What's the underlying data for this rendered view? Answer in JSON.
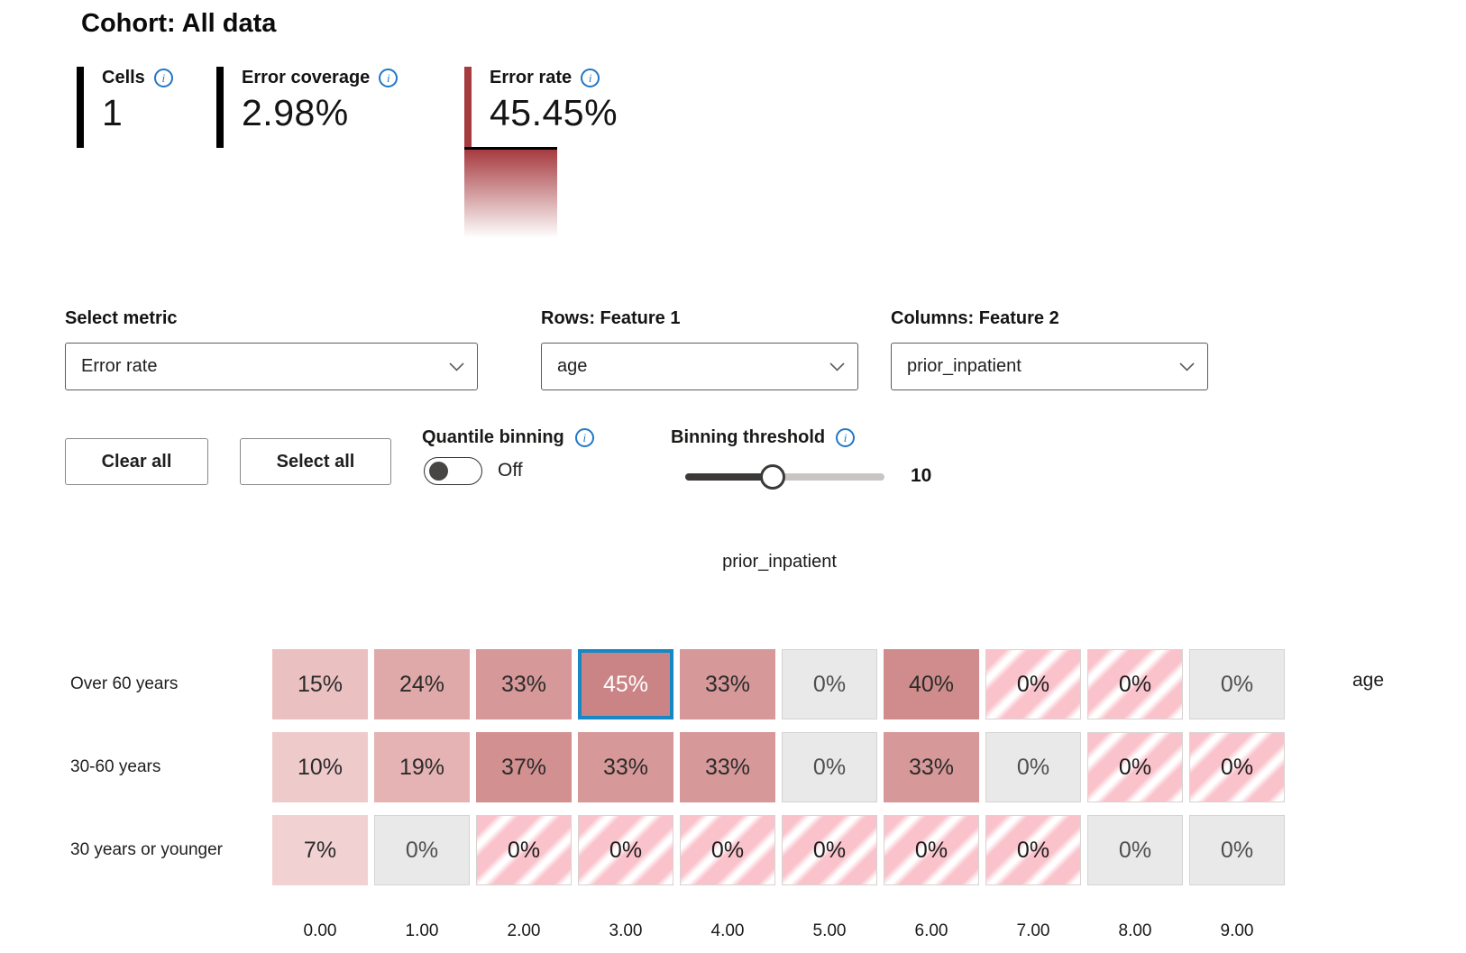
{
  "title": "Cohort: All data",
  "stats": [
    {
      "label": "Cells",
      "value": "1",
      "bar_color": "#000000"
    },
    {
      "label": "Error coverage",
      "value": "2.98%",
      "bar_color": "#000000"
    },
    {
      "label": "Error rate",
      "value": "45.45%",
      "bar_color": "#a63b40"
    }
  ],
  "legend": {
    "gradient_top": "#a63b40",
    "gradient_bottom": "#ffffff"
  },
  "controls": {
    "metric": {
      "label": "Select metric",
      "value": "Error rate"
    },
    "rows_feature": {
      "label": "Rows: Feature 1",
      "value": "age"
    },
    "cols_feature": {
      "label": "Columns: Feature 2",
      "value": "prior_inpatient"
    },
    "clear_all_label": "Clear all",
    "select_all_label": "Select all",
    "quantile": {
      "label": "Quantile binning",
      "state": "Off"
    },
    "threshold": {
      "label": "Binning threshold",
      "value": "10",
      "percent": 44
    }
  },
  "colors": {
    "selection_border": "#1788c4",
    "info_icon": "#2076c6",
    "stripe_pink": "#fac2cb",
    "gray_cell": "#e9e9e9"
  },
  "chart_data": {
    "type": "heatmap",
    "title": "prior_inpatient",
    "metric": "Error rate",
    "col_axis_label": "prior_inpatient",
    "row_axis_label": "age",
    "rows": [
      "Over 60 years",
      "30-60 years",
      "30 years or younger"
    ],
    "columns": [
      "0.00",
      "1.00",
      "2.00",
      "3.00",
      "4.00",
      "5.00",
      "6.00",
      "7.00",
      "8.00",
      "9.00"
    ],
    "values": [
      [
        15,
        24,
        33,
        45,
        33,
        0,
        40,
        0,
        0,
        0
      ],
      [
        10,
        19,
        37,
        33,
        33,
        0,
        33,
        0,
        0,
        0
      ],
      [
        7,
        0,
        0,
        0,
        0,
        0,
        0,
        0,
        0,
        0
      ]
    ],
    "selected_cell": {
      "row": 0,
      "col": 3
    },
    "cells": [
      [
        {
          "label": "15%",
          "style": "solid",
          "color": "#ebc0c1"
        },
        {
          "label": "24%",
          "style": "solid",
          "color": "#e0a9a9"
        },
        {
          "label": "33%",
          "style": "solid",
          "color": "#d79899"
        },
        {
          "label": "45%",
          "style": "solid",
          "color": "#cb8485",
          "selected": true
        },
        {
          "label": "33%",
          "style": "solid",
          "color": "#d79899"
        },
        {
          "label": "0%",
          "style": "gray"
        },
        {
          "label": "40%",
          "style": "solid",
          "color": "#d08c8c"
        },
        {
          "label": "0%",
          "style": "stripe"
        },
        {
          "label": "0%",
          "style": "stripe"
        },
        {
          "label": "0%",
          "style": "gray"
        }
      ],
      [
        {
          "label": "10%",
          "style": "solid",
          "color": "#efcacb"
        },
        {
          "label": "19%",
          "style": "solid",
          "color": "#e5b3b4"
        },
        {
          "label": "37%",
          "style": "solid",
          "color": "#d39091"
        },
        {
          "label": "33%",
          "style": "solid",
          "color": "#d79899"
        },
        {
          "label": "33%",
          "style": "solid",
          "color": "#d79899"
        },
        {
          "label": "0%",
          "style": "gray"
        },
        {
          "label": "33%",
          "style": "solid",
          "color": "#d79899"
        },
        {
          "label": "0%",
          "style": "gray"
        },
        {
          "label": "0%",
          "style": "stripe"
        },
        {
          "label": "0%",
          "style": "stripe"
        }
      ],
      [
        {
          "label": "7%",
          "style": "solid",
          "color": "#f2d1d2"
        },
        {
          "label": "0%",
          "style": "gray"
        },
        {
          "label": "0%",
          "style": "stripe"
        },
        {
          "label": "0%",
          "style": "stripe"
        },
        {
          "label": "0%",
          "style": "stripe"
        },
        {
          "label": "0%",
          "style": "stripe"
        },
        {
          "label": "0%",
          "style": "stripe"
        },
        {
          "label": "0%",
          "style": "stripe"
        },
        {
          "label": "0%",
          "style": "gray"
        },
        {
          "label": "0%",
          "style": "gray"
        }
      ]
    ]
  }
}
